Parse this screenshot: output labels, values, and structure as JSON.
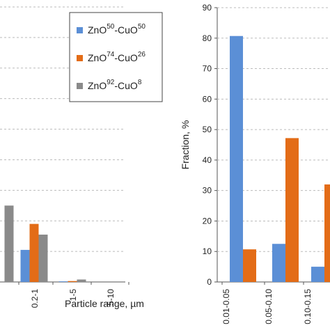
{
  "colors": {
    "s50": "#5B8FD6",
    "s74": "#E36C17",
    "s92": "#8A8A8A",
    "grid": "#BBBBBB",
    "axis": "#555555"
  },
  "chart_data": [
    {
      "type": "bar",
      "xlabel": "Particle range, µm",
      "ylabel": "",
      "categories": [
        "",
        "0.2-1",
        "1-5",
        "5-10"
      ],
      "ylim": [
        0,
        90
      ],
      "grid": true,
      "legend_position": "top-right",
      "series": [
        {
          "name": "ZnO50-CuO50",
          "name_parts": [
            "ZnO",
            "50",
            "-CuO",
            "50"
          ],
          "color": "#5B8FD6",
          "values": [
            0,
            10.5,
            0.2,
            0
          ]
        },
        {
          "name": "ZnO74-CuO26",
          "name_parts": [
            "ZnO",
            "74",
            "-CuO",
            "26"
          ],
          "color": "#E36C17",
          "values": [
            0,
            19,
            0.3,
            0
          ]
        },
        {
          "name": "ZnO92-CuO8",
          "name_parts": [
            "ZnO",
            "92",
            "-CuO",
            "8"
          ],
          "color": "#8A8A8A",
          "values": [
            25,
            15.5,
            0.8,
            0
          ]
        }
      ]
    },
    {
      "type": "bar",
      "xlabel": "",
      "ylabel": "Fraction, %",
      "categories": [
        "0.01-0.05",
        "0.05-0.10",
        "0.10-0.15"
      ],
      "ylim": [
        0,
        90
      ],
      "yticks": [
        "0",
        "10",
        "20",
        "30",
        "40",
        "50",
        "60",
        "70",
        "80",
        "90"
      ],
      "grid": true,
      "series": [
        {
          "name": "",
          "color": "#5B8FD6",
          "values": [
            80.7,
            12.5,
            5
          ]
        },
        {
          "name": "",
          "color": "#E36C17",
          "values": [
            10.7,
            47.2,
            32
          ]
        }
      ]
    }
  ]
}
